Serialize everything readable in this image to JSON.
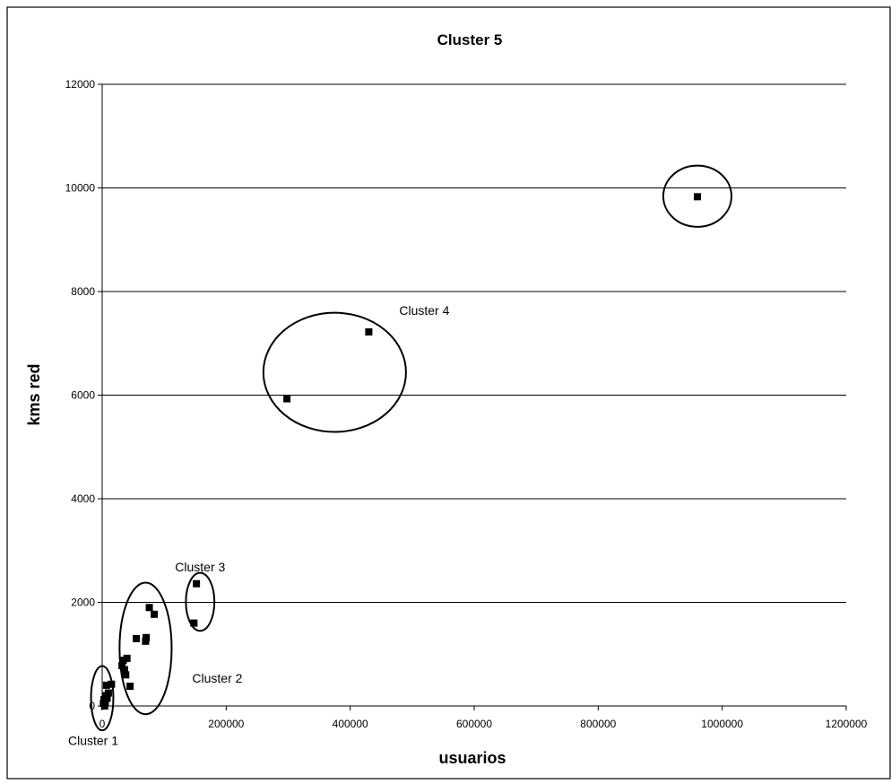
{
  "chart_data": {
    "type": "scatter",
    "title": "Cluster 5",
    "xlabel": "usuarios",
    "ylabel": "kms red",
    "xlim": [
      0,
      1200000
    ],
    "ylim": [
      0,
      12000
    ],
    "x_ticks": [
      "0",
      "200000",
      "400000",
      "600000",
      "800000",
      "1000000",
      "1200000"
    ],
    "y_ticks": [
      "0",
      "2000",
      "4000",
      "6000",
      "8000",
      "10000",
      "12000"
    ],
    "grid": "horizontal",
    "legend": "none",
    "marker_color": "#000000",
    "points": [
      {
        "x": 2000,
        "y": 50
      },
      {
        "x": 3000,
        "y": 120
      },
      {
        "x": 4000,
        "y": 0
      },
      {
        "x": 5000,
        "y": 80
      },
      {
        "x": 6000,
        "y": 200
      },
      {
        "x": 8000,
        "y": 150
      },
      {
        "x": 7000,
        "y": 400
      },
      {
        "x": 10000,
        "y": 250
      },
      {
        "x": 15000,
        "y": 420
      },
      {
        "x": 32000,
        "y": 780
      },
      {
        "x": 34000,
        "y": 880
      },
      {
        "x": 36000,
        "y": 700
      },
      {
        "x": 38000,
        "y": 600
      },
      {
        "x": 40000,
        "y": 920
      },
      {
        "x": 45000,
        "y": 380
      },
      {
        "x": 55000,
        "y": 1300
      },
      {
        "x": 70000,
        "y": 1250
      },
      {
        "x": 71000,
        "y": 1320
      },
      {
        "x": 76000,
        "y": 1900
      },
      {
        "x": 84000,
        "y": 1770
      },
      {
        "x": 148000,
        "y": 1600
      },
      {
        "x": 152000,
        "y": 2360
      },
      {
        "x": 298000,
        "y": 5930
      },
      {
        "x": 430000,
        "y": 7220
      },
      {
        "x": 960000,
        "y": 9830
      }
    ],
    "annotations": [
      {
        "label": "Cluster 1",
        "cx": 0,
        "cy": 150,
        "rx": 18000,
        "ry": 620
      },
      {
        "label": "Cluster 2",
        "cx": 70000,
        "cy": 1110,
        "rx": 42000,
        "ry": 1270
      },
      {
        "label": "Cluster 3",
        "cx": 158000,
        "cy": 2010,
        "rx": 23000,
        "ry": 560
      },
      {
        "label": "Cluster 4",
        "cx": 375000,
        "cy": 6440,
        "rx": 115000,
        "ry": 1150
      },
      {
        "label": "",
        "cx": 960000,
        "cy": 9840,
        "rx": 55000,
        "ry": 590
      }
    ]
  }
}
